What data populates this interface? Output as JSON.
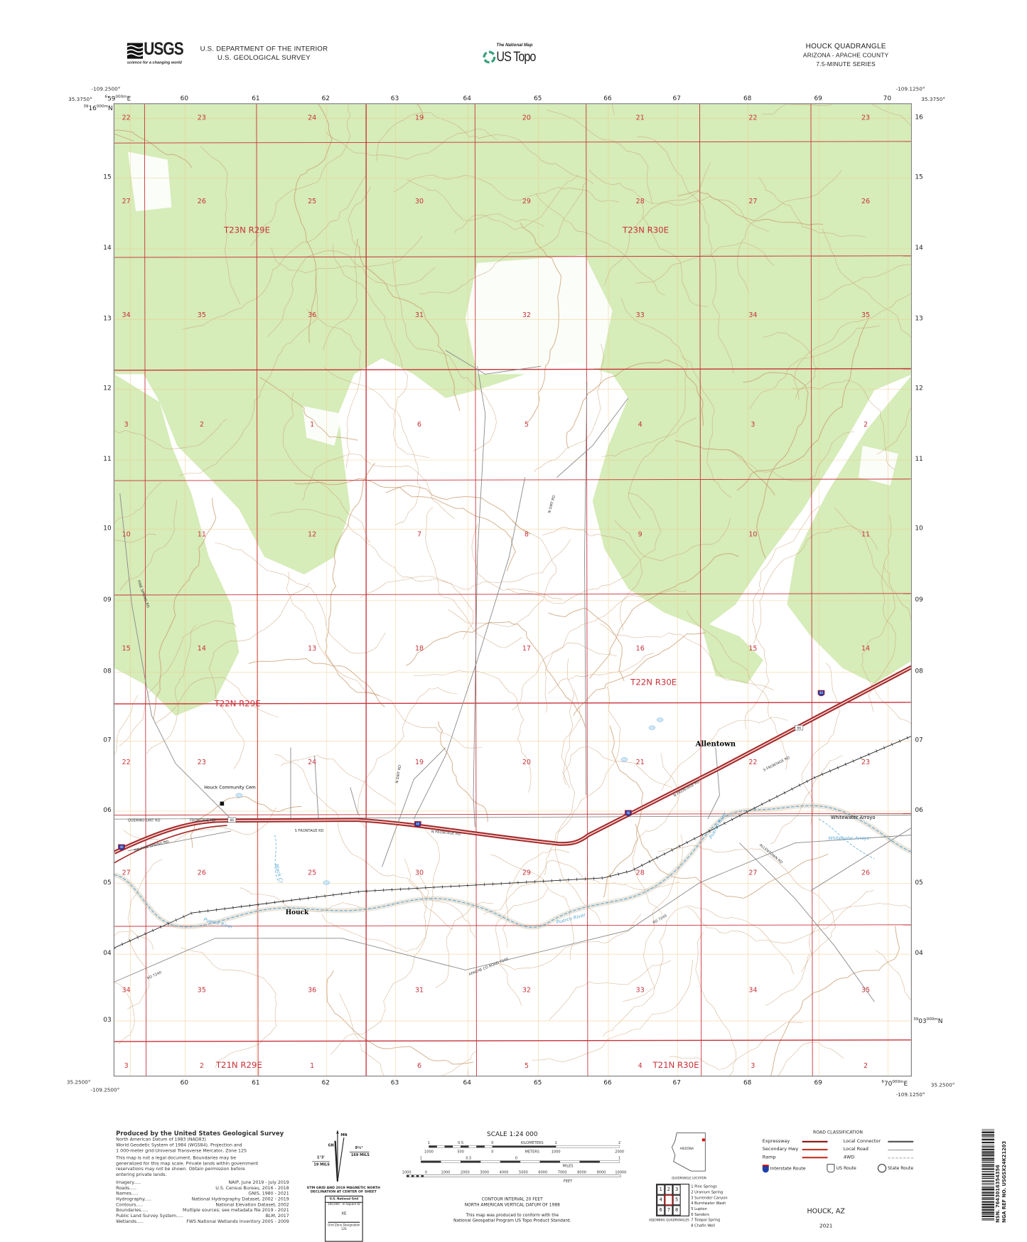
{
  "header": {
    "agency_logo": "USGS",
    "agency_tagline": "science for a changing world",
    "department_line1": "U.S. DEPARTMENT OF THE INTERIOR",
    "department_line2": "U.S. GEOLOGICAL SURVEY",
    "product_small": "The National Map",
    "product_name": "US Topo",
    "quad_title": "HOUCK QUADRANGLE",
    "quad_state_county": "ARIZONA - APACHE COUNTY",
    "quad_series": "7.5-MINUTE SERIES"
  },
  "corners": {
    "nw_lon": "-109.2500°",
    "nw_lat": "35.3750°",
    "ne_lon": "-109.1250°",
    "ne_lat": "35.3750°",
    "sw_lon": "-109.2500°",
    "sw_lat": "35.2500°",
    "se_lon": "-109.1250°",
    "se_lat": "35.2500°"
  },
  "utm": {
    "first_easting": {
      "prefix": "6",
      "main": "59",
      "suffix": "000m",
      "unit": "E"
    },
    "last_easting": {
      "prefix": "6",
      "main": "70",
      "suffix": "000m",
      "unit": "E"
    },
    "first_northing": {
      "prefix": "39",
      "main": "16",
      "suffix": "000m",
      "unit": "N"
    },
    "last_northing": {
      "prefix": "39",
      "main": "03",
      "suffix": "000m",
      "unit": "N"
    },
    "eastings": [
      "60",
      "61",
      "62",
      "63",
      "64",
      "65",
      "66",
      "67",
      "68",
      "69",
      "70"
    ],
    "northings_left": [
      "15",
      "14",
      "13",
      "12",
      "11",
      "10",
      "09",
      "08",
      "07",
      "06",
      "05",
      "04",
      "03"
    ],
    "northings_right": [
      "16",
      "15",
      "14",
      "13",
      "12",
      "11",
      "10",
      "09",
      "08",
      "07",
      "06",
      "05",
      "04"
    ]
  },
  "map": {
    "colors": {
      "vegetation": "#d6ecb9",
      "section_line": "#c8323a",
      "contour": "#c79a6d",
      "water": "#5aa9d6",
      "interstate": "#a52a2a",
      "road": "#888888",
      "grid_tick": "#f1c98a"
    },
    "townships": [
      "T23N R29E",
      "T23N R30E",
      "T22N R29E",
      "T22N R30E",
      "T21N R29E",
      "T21N R30E"
    ],
    "section_rows": [
      [
        "22",
        "23",
        "24",
        "19",
        "20",
        "21",
        "22",
        "23"
      ],
      [
        "27",
        "26",
        "25",
        "30",
        "29",
        "28",
        "27",
        "26"
      ],
      [
        "34",
        "35",
        "36",
        "31",
        "32",
        "33",
        "34",
        "35"
      ],
      [
        "3",
        "2",
        "1",
        "6",
        "5",
        "4",
        "3",
        "2"
      ],
      [
        "10",
        "11",
        "12",
        "7",
        "8",
        "9",
        "10",
        "11"
      ],
      [
        "15",
        "14",
        "13",
        "18",
        "17",
        "16",
        "15",
        "14"
      ],
      [
        "22",
        "23",
        "24",
        "19",
        "20",
        "21",
        "22",
        "23"
      ],
      [
        "27",
        "26",
        "25",
        "30",
        "29",
        "28",
        "27",
        "26"
      ],
      [
        "34",
        "35",
        "36",
        "31",
        "32",
        "33",
        "34",
        "35"
      ],
      [
        "3",
        "2",
        "1",
        "6",
        "5",
        "4",
        "3",
        "2"
      ]
    ],
    "places": {
      "allentown": "Allentown",
      "houck": "Houck",
      "cemetery": "Houck Community Cem",
      "arroyo": "Whitewater Arroyo"
    },
    "water_labels": {
      "puerco_1": "Puerco River",
      "puerco_2": "Puerco River",
      "puerco_3": "Puerco River",
      "black_creek": "Black Cr",
      "arroyo": "Whitewater Arroyo"
    },
    "roads": {
      "n_frontage_1": "N FRONTAGE RD",
      "n_frontage_2": "N FRONTAGE RD",
      "s_frontage_1": "S FRONTAGE RD",
      "s_frontage_2": "S FRONTAGE RD",
      "frontage": "FRONTAGE RD",
      "querino": "QUERINO DIRT RD",
      "pine_spring": "SW PINE SPRING RD",
      "apache_co": "APACHE CO ROAD 7240",
      "rd7240": "RD 7240",
      "rd7240b": "RD 7240",
      "allentown_rd": "ALLENTOWN RD",
      "n_dirt_1": "N DIRT RD",
      "n_dirt_2": "N DIRT RD",
      "pine_spring_rd": "PINE SPRING RD"
    },
    "shields": {
      "interstate": "40",
      "us_route": "66"
    }
  },
  "footer": {
    "produced_by": "Produced by the United States Geological Survey",
    "datum_lines": [
      "North American Datum of 1983 (NAD83)",
      "World Geodetic System of 1984 (WGS84).  Projection and",
      "1 000-meter grid:Universal Transverse Mercator, Zone 12S"
    ],
    "disclaimer_lines": [
      "This map is not a legal document. Boundaries may be",
      "generalized for this map scale. Private lands within government",
      "reservations may not be shown. Obtain permission before",
      "entering private lands."
    ],
    "sources": [
      {
        "name": "Imagery",
        "source": "NAIP, June 2019 - July 2019"
      },
      {
        "name": "Roads",
        "source": "U.S. Census Bureau, 2016 - 2018"
      },
      {
        "name": "Names",
        "source": "GNIS, 1980 - 2021"
      },
      {
        "name": "Hydrography",
        "source": "National Hydrography Dataset, 2002 - 2019"
      },
      {
        "name": "Contours",
        "source": "National Elevation Dataset, 2002"
      },
      {
        "name": "Boundaries",
        "source": "Multiple sources; see metadata file 2019 - 2021"
      },
      {
        "name": "Public Land Survey System",
        "source": "BLM, 2017"
      },
      {
        "name": "Wetlands",
        "source": "FWS National Wetlands Inventory 2005 - 2009"
      }
    ],
    "declination": {
      "mn": "MN",
      "gn": "GN",
      "grid_angle": "1°3'",
      "grid_mils": "19 MILS",
      "mag_angle": "9½°",
      "mag_mils": "169 MILS",
      "caption_1": "UTM GRID AND 2019 MAGNETIC NORTH",
      "caption_2": "DECLINATION AT CENTER OF SHEET"
    },
    "usng": {
      "title": "U.S. National Grid",
      "sub": "100,000 - m Square ID",
      "square_id": "XE",
      "zone_label": "Grid Zone Designation",
      "zone": "12S"
    },
    "scale": {
      "title": "SCALE 1:24 000",
      "km_labels": [
        "1",
        "0.5",
        "0",
        "KILOMETERS",
        "1",
        "2"
      ],
      "m_labels": [
        "1000",
        "500",
        "0",
        "METERS",
        "1000",
        "2000"
      ],
      "mi_labels": [
        "1",
        "0.5",
        "0",
        "1"
      ],
      "mi_unit": "MILES",
      "ft_labels": [
        "1000",
        "0",
        "1000",
        "2000",
        "3000",
        "4000",
        "5000",
        "6000",
        "7000",
        "8000",
        "9000",
        "10000"
      ],
      "ft_unit": "FEET",
      "contour_1": "CONTOUR INTERVAL 20 FEET",
      "contour_2": "NORTH AMERICAN VERTICAL DATUM OF 1988",
      "standard_1": "This map was produced to conform with the",
      "standard_2": "National Geospatial Program US Topo Product Standard."
    },
    "location": {
      "state": "ARIZONA",
      "caption": "QUADRANGLE LOCATION"
    },
    "adjoining": {
      "caption": "ADJOINING QUADRANGLES",
      "cells": [
        "1",
        "2",
        "3",
        "4",
        "",
        "5",
        "6",
        "7",
        "8"
      ],
      "names": [
        "1 Pine Springs",
        "2 Uranium Spring",
        "3 Surrender Canyon",
        "4 Burntwater Wash",
        "5 Lupton",
        "6 Sanders",
        "7 Tolapai Spring",
        "8 Chafin Well"
      ]
    },
    "road_class": {
      "title": "ROAD CLASSIFICATION",
      "left": [
        "Expressway",
        "Secondary Hwy",
        "Ramp"
      ],
      "right": [
        "Local Connector",
        "Local Road",
        "4WD"
      ],
      "shields": [
        "Interstate Route",
        "US Route",
        "State Route"
      ]
    },
    "sheet_name": "HOUCK, AZ",
    "year": "2021",
    "barcode_nsn": "NSN. 7643016354356",
    "barcode_ref": "NGA REF NO. USGSX24K21203"
  }
}
